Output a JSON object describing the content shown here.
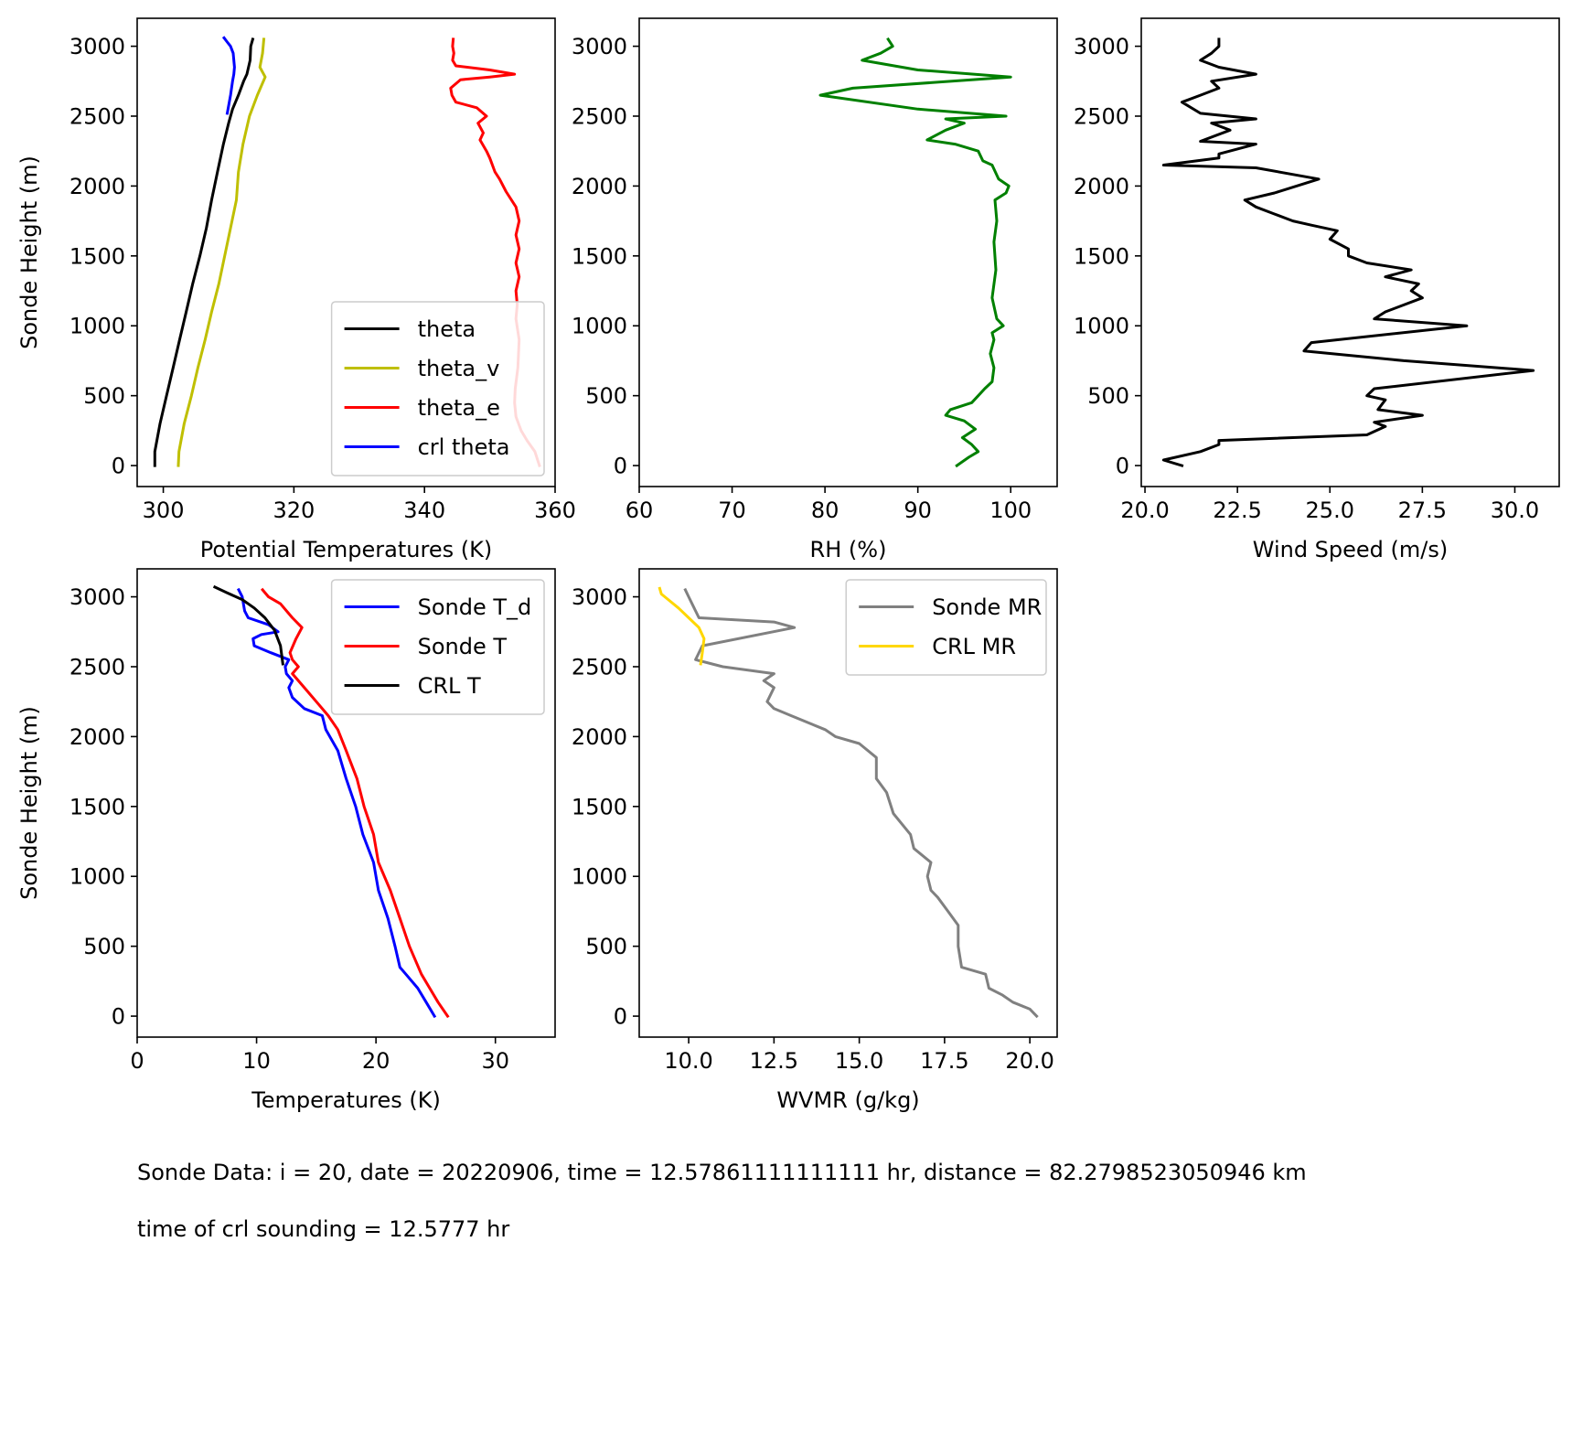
{
  "footnotes": {
    "line1": "Sonde Data: i = 20, date = 20220906, time = 12.57861111111111 hr, distance = 82.2798523050946 km",
    "line2": "time of crl sounding = 12.5777 hr"
  },
  "chart_data": [
    {
      "id": "potential-temperatures",
      "type": "line",
      "xlabel": "Potential Temperatures (K)",
      "ylabel": "Sonde Height (m)",
      "xlim": [
        296,
        360
      ],
      "ylim": [
        -150,
        3200
      ],
      "xticks": [
        300,
        320,
        340,
        360
      ],
      "xticklabels": [
        "300",
        "320",
        "340",
        "360"
      ],
      "yticks": [
        0,
        500,
        1000,
        1500,
        2000,
        2500,
        3000
      ],
      "yticklabels": [
        "0",
        "500",
        "1000",
        "1500",
        "2000",
        "2500",
        "3000"
      ],
      "legend_loc": "lower-right",
      "grid": false,
      "series": [
        {
          "name": "theta",
          "color": "#000000",
          "x": [
            298.7,
            298.7,
            299.5,
            300.5,
            301.5,
            302.5,
            303.5,
            304.5,
            305.6,
            306.6,
            307.4,
            308.3,
            309.2,
            310.0,
            310.6,
            311.5,
            312.3,
            312.8,
            313.3,
            313.4,
            313.7
          ],
          "y": [
            0,
            100,
            300,
            500,
            700,
            900,
            1100,
            1300,
            1500,
            1700,
            1900,
            2100,
            2300,
            2450,
            2550,
            2650,
            2750,
            2800,
            2900,
            3000,
            3050
          ]
        },
        {
          "name": "theta_v",
          "color": "#bfbf00",
          "x": [
            302.3,
            302.4,
            303.2,
            304.3,
            305.3,
            306.4,
            307.4,
            308.5,
            309.4,
            310.3,
            311.2,
            311.5,
            312.2,
            313.2,
            314.4,
            315.6,
            314.8,
            315.2,
            315.4
          ],
          "y": [
            0,
            100,
            300,
            500,
            700,
            900,
            1100,
            1300,
            1500,
            1700,
            1900,
            2100,
            2300,
            2500,
            2650,
            2780,
            2850,
            2950,
            3050
          ]
        },
        {
          "name": "theta_e",
          "color": "#ff0000",
          "x": [
            357.6,
            356.9,
            355.7,
            354.8,
            354.0,
            353.8,
            353.9,
            354.3,
            354.5,
            354.0,
            354.2,
            354.0,
            354.5,
            354.0,
            354.5,
            354.0,
            354.5,
            354.0,
            352.5,
            351.5,
            350.8,
            350.0,
            349.5,
            348.5,
            349.0,
            348.2,
            349.5,
            348.0,
            344.8,
            344.2,
            344.0,
            345.5,
            350.0,
            353.8,
            350.0,
            344.8,
            344.3,
            344.5,
            344.3,
            344.4
          ],
          "y": [
            0,
            100,
            180,
            250,
            350,
            450,
            550,
            700,
            900,
            1050,
            1150,
            1250,
            1350,
            1450,
            1550,
            1650,
            1750,
            1850,
            1960,
            2050,
            2100,
            2200,
            2250,
            2330,
            2380,
            2450,
            2500,
            2560,
            2600,
            2650,
            2700,
            2760,
            2780,
            2800,
            2830,
            2860,
            2900,
            2950,
            3000,
            3050
          ]
        },
        {
          "name": "crl theta",
          "color": "#0000ff",
          "x": [
            309.8,
            310.3,
            310.6,
            310.8,
            310.9,
            310.8,
            310.7,
            310.3,
            309.8,
            309.3
          ],
          "y": [
            2520,
            2650,
            2750,
            2800,
            2850,
            2900,
            2950,
            3000,
            3030,
            3060
          ]
        }
      ]
    },
    {
      "id": "relative-humidity",
      "type": "line",
      "xlabel": "RH (%)",
      "ylabel": "",
      "xlim": [
        60,
        105
      ],
      "ylim": [
        -150,
        3200
      ],
      "xticks": [
        60,
        70,
        80,
        90,
        100
      ],
      "xticklabels": [
        "60",
        "70",
        "80",
        "90",
        "100"
      ],
      "yticks": [
        0,
        500,
        1000,
        1500,
        2000,
        2500,
        3000
      ],
      "yticklabels": [
        "0",
        "500",
        "1000",
        "1500",
        "2000",
        "2500",
        "3000"
      ],
      "grid": false,
      "series": [
        {
          "color": "#008000",
          "x": [
            94.2,
            95.5,
            96.5,
            95.8,
            94.8,
            96.2,
            95.0,
            93.0,
            93.5,
            95.8,
            96.5,
            97.2,
            98.0,
            98.2,
            97.8,
            98.2,
            98.0,
            99.2,
            98.5,
            98.0,
            98.4,
            98.2,
            98.5,
            98.3,
            99.5,
            99.8,
            98.7,
            98.0,
            97.0,
            96.5,
            94.0,
            91.0,
            93.0,
            95.0,
            93.0,
            99.5,
            90.0,
            79.5,
            83.0,
            100.0,
            90.0,
            84.0,
            86.0,
            87.3,
            86.8
          ],
          "y": [
            0,
            60,
            100,
            150,
            200,
            260,
            320,
            360,
            400,
            450,
            500,
            550,
            600,
            700,
            800,
            900,
            950,
            1000,
            1050,
            1200,
            1400,
            1600,
            1750,
            1900,
            1950,
            2000,
            2050,
            2150,
            2180,
            2250,
            2300,
            2330,
            2400,
            2450,
            2480,
            2500,
            2550,
            2650,
            2700,
            2780,
            2830,
            2900,
            2950,
            3000,
            3050
          ]
        }
      ]
    },
    {
      "id": "wind-speed",
      "type": "line",
      "xlabel": "Wind Speed (m/s)",
      "ylabel": "",
      "xlim": [
        19.9,
        31.2
      ],
      "ylim": [
        -150,
        3200
      ],
      "xticks": [
        20.0,
        22.5,
        25.0,
        27.5,
        30.0
      ],
      "xticklabels": [
        "20.0",
        "22.5",
        "25.0",
        "27.5",
        "30.0"
      ],
      "yticks": [
        0,
        500,
        1000,
        1500,
        2000,
        2500,
        3000
      ],
      "yticklabels": [
        "0",
        "500",
        "1000",
        "1500",
        "2000",
        "2500",
        "3000"
      ],
      "grid": false,
      "series": [
        {
          "color": "#000000",
          "x": [
            21.0,
            20.5,
            21.5,
            22.0,
            22.0,
            26.0,
            26.5,
            26.2,
            27.5,
            26.3,
            26.5,
            26.0,
            26.2,
            30.5,
            27.0,
            24.3,
            24.5,
            28.7,
            26.2,
            26.5,
            27.5,
            27.2,
            27.4,
            26.5,
            27.2,
            26.0,
            25.5,
            25.5,
            25.0,
            25.2,
            24.5,
            24.0,
            23.5,
            23.0,
            22.7,
            23.5,
            24.7,
            23.0,
            20.5,
            22.0,
            22.0,
            23.0,
            21.5,
            22.3,
            21.8,
            23.0,
            21.5,
            21.0,
            21.5,
            22.0,
            21.8,
            23.0,
            22.0,
            21.5,
            21.8,
            22.0,
            22.0
          ],
          "y": [
            0,
            40,
            100,
            150,
            180,
            220,
            280,
            310,
            360,
            400,
            470,
            500,
            550,
            680,
            750,
            820,
            880,
            1000,
            1050,
            1100,
            1200,
            1250,
            1300,
            1350,
            1400,
            1450,
            1500,
            1550,
            1620,
            1680,
            1720,
            1750,
            1800,
            1850,
            1900,
            1950,
            2050,
            2130,
            2150,
            2200,
            2230,
            2300,
            2320,
            2400,
            2450,
            2480,
            2520,
            2600,
            2650,
            2700,
            2750,
            2800,
            2850,
            2900,
            2950,
            3000,
            3050
          ]
        }
      ]
    },
    {
      "id": "temperatures",
      "type": "line",
      "xlabel": "Temperatures (K)",
      "ylabel": "Sonde Height (m)",
      "xlim": [
        0,
        35
      ],
      "ylim": [
        -150,
        3200
      ],
      "xticks": [
        0,
        10,
        20,
        30
      ],
      "xticklabels": [
        "0",
        "10",
        "20",
        "30"
      ],
      "yticks": [
        0,
        500,
        1000,
        1500,
        2000,
        2500,
        3000
      ],
      "yticklabels": [
        "0",
        "500",
        "1000",
        "1500",
        "2000",
        "2500",
        "3000"
      ],
      "legend_loc": "top-right",
      "grid": false,
      "series": [
        {
          "name": "Sonde T_d",
          "color": "#0000ff",
          "x": [
            24.9,
            24.2,
            23.5,
            22.5,
            22.0,
            21.6,
            21.0,
            20.2,
            19.8,
            18.9,
            18.3,
            17.5,
            16.8,
            15.8,
            15.5,
            14.0,
            13.0,
            12.7,
            13.0,
            12.5,
            12.4,
            12.7,
            11.2,
            9.8,
            9.7,
            10.4,
            11.8,
            11.0,
            9.3,
            9.0,
            8.8,
            8.5
          ],
          "y": [
            0,
            100,
            200,
            300,
            350,
            500,
            700,
            900,
            1100,
            1300,
            1500,
            1700,
            1900,
            2050,
            2150,
            2200,
            2280,
            2350,
            2400,
            2450,
            2500,
            2550,
            2600,
            2650,
            2700,
            2730,
            2750,
            2800,
            2850,
            2900,
            3000,
            3050
          ]
        },
        {
          "name": "Sonde T",
          "color": "#ff0000",
          "x": [
            26.0,
            25.2,
            24.5,
            23.8,
            22.8,
            22.0,
            21.2,
            20.2,
            19.8,
            19.0,
            18.4,
            17.5,
            16.8,
            16.0,
            15.0,
            14.0,
            13.0,
            13.5,
            13.0,
            12.8,
            13.3,
            13.8,
            13.0,
            12.0,
            11.0,
            10.5
          ],
          "y": [
            0,
            100,
            200,
            300,
            500,
            700,
            900,
            1100,
            1300,
            1500,
            1700,
            1900,
            2050,
            2150,
            2250,
            2350,
            2450,
            2500,
            2550,
            2600,
            2700,
            2780,
            2850,
            2950,
            3000,
            3050
          ]
        },
        {
          "name": "CRL T",
          "color": "#000000",
          "x": [
            12.2,
            12.0,
            11.5,
            10.7,
            9.8,
            8.8,
            7.5,
            6.5
          ],
          "y": [
            2520,
            2650,
            2760,
            2850,
            2920,
            2980,
            3030,
            3070
          ]
        }
      ]
    },
    {
      "id": "wvmr",
      "type": "line",
      "xlabel": "WVMR (g/kg)",
      "ylabel": "",
      "xlim": [
        8.55,
        20.8
      ],
      "ylim": [
        -150,
        3200
      ],
      "xticks": [
        10.0,
        12.5,
        15.0,
        17.5,
        20.0
      ],
      "xticklabels": [
        "10.0",
        "12.5",
        "15.0",
        "17.5",
        "20.0"
      ],
      "yticks": [
        0,
        500,
        1000,
        1500,
        2000,
        2500,
        3000
      ],
      "yticklabels": [
        "0",
        "500",
        "1000",
        "1500",
        "2000",
        "2500",
        "3000"
      ],
      "legend_loc": "top-right",
      "grid": false,
      "series": [
        {
          "name": "Sonde MR",
          "color": "#808080",
          "x": [
            20.2,
            20.0,
            19.5,
            19.2,
            18.8,
            18.7,
            18.0,
            17.9,
            17.9,
            17.6,
            17.3,
            17.1,
            17.0,
            17.1,
            16.6,
            16.5,
            16.0,
            15.8,
            15.5,
            15.5,
            15.0,
            14.3,
            14.0,
            13.0,
            12.5,
            12.3,
            12.5,
            12.2,
            12.5,
            11.0,
            10.2,
            10.4,
            13.1,
            12.5,
            10.3,
            10.1,
            10.0,
            9.9
          ],
          "y": [
            0,
            50,
            100,
            150,
            200,
            300,
            350,
            500,
            650,
            750,
            850,
            900,
            1000,
            1100,
            1200,
            1300,
            1450,
            1600,
            1700,
            1850,
            1950,
            2000,
            2050,
            2150,
            2200,
            2250,
            2350,
            2400,
            2450,
            2500,
            2550,
            2650,
            2780,
            2820,
            2850,
            2950,
            3000,
            3050
          ]
        },
        {
          "name": "CRL MR",
          "color": "#ffd700",
          "x": [
            10.35,
            10.4,
            10.45,
            10.3,
            10.0,
            9.7,
            9.4,
            9.2,
            9.15
          ],
          "y": [
            2520,
            2600,
            2700,
            2780,
            2850,
            2920,
            2980,
            3020,
            3060
          ]
        }
      ]
    }
  ]
}
